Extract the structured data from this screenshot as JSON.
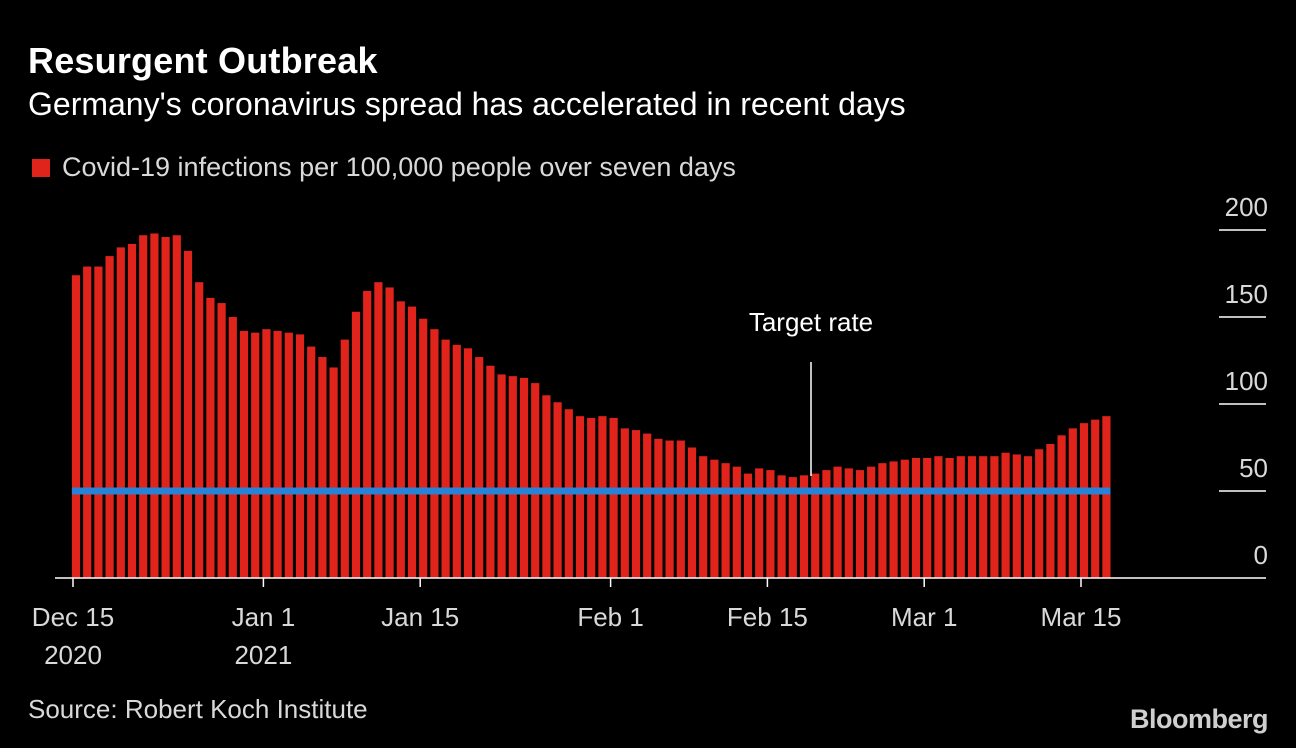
{
  "title": "Resurgent Outbreak",
  "subtitle": "Germany's coronavirus spread has accelerated in recent days",
  "legend": {
    "label": "Covid-19 infections per 100,000 people over seven days",
    "color": "#e0241b"
  },
  "source": "Source: Robert Koch Institute",
  "brand": "Bloomberg",
  "chart_data": {
    "type": "bar",
    "title": "Resurgent Outbreak",
    "subtitle": "Germany's coronavirus spread has accelerated in recent days",
    "series": [
      {
        "name": "Covid-19 infections per 100,000 people over seven days",
        "color": "#e0241b",
        "values": [
          174,
          179,
          179,
          185,
          190,
          192,
          197,
          198,
          196,
          197,
          188,
          170,
          161,
          158,
          150,
          142,
          141,
          143,
          142,
          141,
          140,
          133,
          127,
          121,
          137,
          153,
          165,
          170,
          167,
          159,
          156,
          149,
          143,
          137,
          134,
          132,
          127,
          122,
          117,
          116,
          115,
          112,
          105,
          101,
          97,
          93,
          92,
          93,
          92,
          86,
          85,
          83,
          80,
          79,
          79,
          75,
          70,
          68,
          66,
          64,
          60,
          63,
          62,
          59,
          58,
          59,
          60,
          62,
          64,
          63,
          62,
          64,
          66,
          67,
          68,
          69,
          69,
          70,
          69,
          70,
          70,
          70,
          70,
          72,
          71,
          70,
          74,
          77,
          82,
          86,
          89,
          91,
          93
        ]
      }
    ],
    "target": {
      "label": "Target rate",
      "value": 50,
      "color": "#2a82d7"
    },
    "x_start": "2020-12-15",
    "x_ticks": [
      {
        "label": "Dec 15",
        "sublabel": "2020",
        "day_index": 0
      },
      {
        "label": "Jan 1",
        "sublabel": "2021",
        "day_index": 17
      },
      {
        "label": "Jan 15",
        "sublabel": "",
        "day_index": 31
      },
      {
        "label": "Feb 1",
        "sublabel": "",
        "day_index": 48
      },
      {
        "label": "Feb 15",
        "sublabel": "",
        "day_index": 62
      },
      {
        "label": "Mar 1",
        "sublabel": "",
        "day_index": 76
      },
      {
        "label": "Mar 15",
        "sublabel": "",
        "day_index": 90
      }
    ],
    "y_ticks": [
      0,
      50,
      100,
      150,
      200
    ],
    "ylim": [
      0,
      200
    ],
    "xlabel": "",
    "ylabel": "",
    "grid": false,
    "legend_position": "top-left"
  }
}
